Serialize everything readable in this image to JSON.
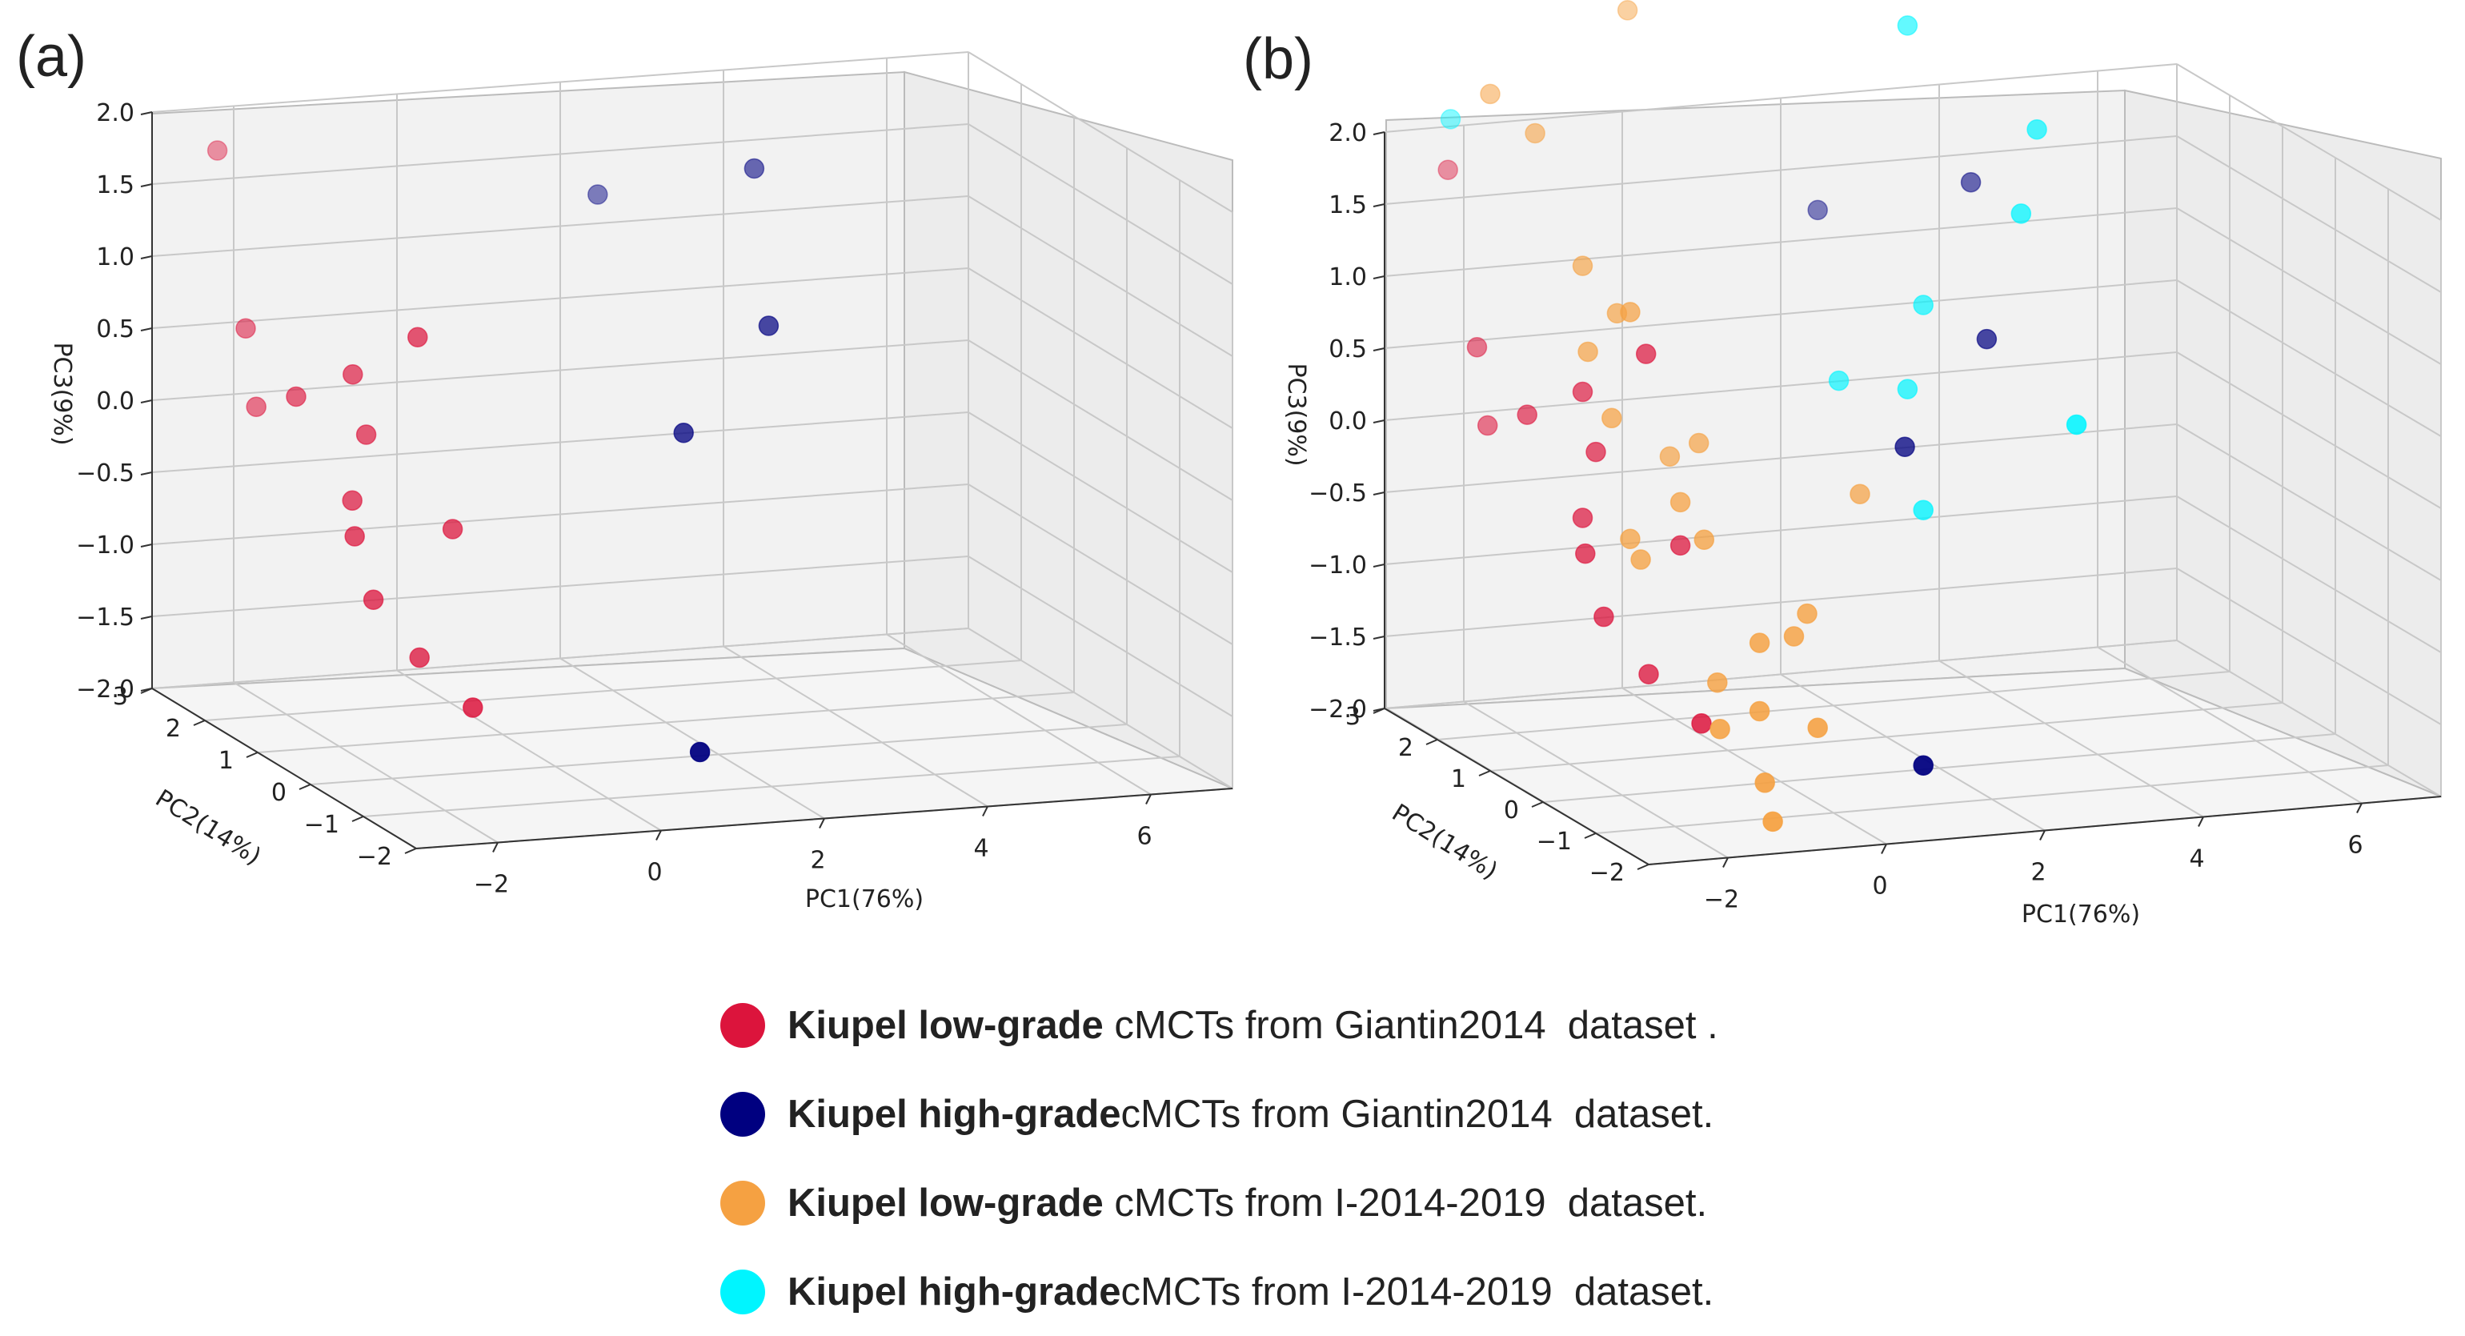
{
  "chart_data": [
    {
      "panel": "(a)",
      "type": "scatter3d",
      "xlabel": "PC1(76%)",
      "ylabel": "PC2(14%)",
      "zlabel": "PC3(9%)",
      "x_ticks": [
        "−2",
        "0",
        "2",
        "4",
        "6"
      ],
      "y_ticks": [
        "−2",
        "−1",
        "0",
        "1",
        "2",
        "3"
      ],
      "z_ticks": [
        "−2.0",
        "−1.5",
        "−1.0",
        "−0.5",
        "0.0",
        "0.5",
        "1.0",
        "1.5",
        "2.0"
      ],
      "xlim": [
        -3,
        7
      ],
      "ylim": [
        -2,
        3
      ],
      "zlim": [
        -2,
        2
      ],
      "series": [
        {
          "name": "Kiupel low-grade cMCTs from Giantin2014 dataset",
          "color": "#dc143c",
          "points": [
            [
              -2.2,
              3.0,
              1.7
            ],
            [
              -2.5,
              2.0,
              0.7
            ],
            [
              -2.5,
              1.8,
              0.2
            ],
            [
              -2.4,
              1.2,
              0.4
            ],
            [
              -1.9,
              0.9,
              0.6
            ],
            [
              -1.8,
              0.8,
              0.2
            ],
            [
              -2.1,
              0.6,
              -0.2
            ],
            [
              -2.2,
              0.4,
              -0.4
            ],
            [
              -2.1,
              0.2,
              -0.8
            ],
            [
              -1.3,
              0.6,
              0.9
            ],
            [
              -1.0,
              0.4,
              -0.4
            ],
            [
              -1.6,
              0.1,
              -1.2
            ],
            [
              -1.4,
              -0.6,
              -1.4
            ]
          ]
        },
        {
          "name": "Kiupel high-grade cMCTs from Giantin2014 dataset",
          "color": "#000080",
          "points": [
            [
              2.2,
              2.6,
              1.3
            ],
            [
              3.6,
              1.8,
              1.6
            ],
            [
              3.0,
              0.6,
              0.8
            ],
            [
              1.7,
              0.2,
              0.2
            ],
            [
              0.8,
              -1.5,
              -1.6
            ]
          ]
        }
      ]
    },
    {
      "panel": "(b)",
      "type": "scatter3d",
      "xlabel": "PC1(76%)",
      "ylabel": "PC2(14%)",
      "zlabel": "PC3(9%)",
      "x_ticks": [
        "−2",
        "0",
        "2",
        "4",
        "6"
      ],
      "y_ticks": [
        "−2",
        "−1",
        "0",
        "1",
        "2",
        "3"
      ],
      "z_ticks": [
        "−2.0",
        "−1.5",
        "−1.0",
        "−0.5",
        "0.0",
        "0.5",
        "1.0",
        "1.5",
        "2.0"
      ],
      "xlim": [
        -3,
        7
      ],
      "ylim": [
        -2,
        3
      ],
      "zlim": [
        -2,
        2
      ],
      "series": [
        {
          "name": "Kiupel low-grade cMCTs from Giantin2014 dataset",
          "color": "#dc143c",
          "points": [
            [
              -2.2,
              3.0,
              1.7
            ],
            [
              -2.5,
              2.0,
              0.7
            ],
            [
              -2.5,
              1.8,
              0.2
            ],
            [
              -2.4,
              1.2,
              0.4
            ],
            [
              -1.9,
              0.9,
              0.6
            ],
            [
              -1.8,
              0.8,
              0.2
            ],
            [
              -2.1,
              0.6,
              -0.2
            ],
            [
              -2.2,
              0.4,
              -0.4
            ],
            [
              -2.1,
              0.2,
              -0.8
            ],
            [
              -1.3,
              0.6,
              0.9
            ],
            [
              -1.0,
              0.4,
              -0.4
            ],
            [
              -1.6,
              0.1,
              -1.2
            ],
            [
              -1.4,
              -0.6,
              -1.4
            ]
          ]
        },
        {
          "name": "Kiupel high-grade cMCTs from Giantin2014 dataset",
          "color": "#000080",
          "points": [
            [
              2.2,
              2.6,
              1.3
            ],
            [
              3.6,
              1.8,
              1.6
            ],
            [
              3.0,
              0.6,
              0.8
            ],
            [
              1.7,
              0.2,
              0.2
            ],
            [
              0.8,
              -1.5,
              -1.6
            ]
          ]
        },
        {
          "name": "Kiupel low-grade cMCTs from I-2014-2019 dataset",
          "color": "#f5a142",
          "points": [
            [
              -2.2,
              2.2,
              2.4
            ],
            [
              -1.9,
              1.8,
              2.2
            ],
            [
              -0.2,
              2.6,
              2.8
            ],
            [
              -1.7,
              1.2,
              1.4
            ],
            [
              -1.4,
              1.0,
              1.1
            ],
            [
              -1.5,
              0.6,
              1.2
            ],
            [
              -1.9,
              0.8,
              0.9
            ],
            [
              -1.8,
              0.5,
              0.5
            ],
            [
              -1.7,
              0.3,
              -0.3
            ],
            [
              -1.7,
              0.1,
              -0.4
            ],
            [
              -0.8,
              0.9,
              0.1
            ],
            [
              -1.0,
              0.4,
              -0.1
            ],
            [
              -0.5,
              0.8,
              0.2
            ],
            [
              -0.9,
              0.1,
              -0.3
            ],
            [
              -0.6,
              -0.5,
              -0.9
            ],
            [
              -1.0,
              -0.3,
              -1.2
            ],
            [
              -1.3,
              -0.8,
              -1.4
            ],
            [
              -0.8,
              -0.8,
              -1.3
            ],
            [
              -0.1,
              -0.4,
              -0.9
            ],
            [
              0.2,
              -0.2,
              -0.8
            ],
            [
              -0.2,
              -1.0,
              -1.4
            ],
            [
              -1.0,
              -1.2,
              -1.7
            ],
            [
              -1.1,
              -1.5,
              -1.9
            ],
            [
              1.4,
              0.6,
              -0.2
            ]
          ]
        },
        {
          "name": "Kiupel high-grade cMCTs from I-2014-2019 dataset",
          "color": "#00f5ff",
          "points": [
            [
              -2.3,
              2.8,
              2.1
            ],
            [
              2.6,
              1.5,
              2.8
            ],
            [
              3.7,
              0.7,
              2.2
            ],
            [
              3.3,
              0.4,
              1.7
            ],
            [
              2.4,
              0.9,
              1.0
            ],
            [
              1.4,
              1.0,
              0.5
            ],
            [
              2.0,
              0.6,
              0.5
            ],
            [
              3.2,
              -0.8,
              0.5
            ],
            [
              1.8,
              0.0,
              -0.2
            ]
          ]
        }
      ]
    }
  ],
  "legend": [
    {
      "color": "#dc143c",
      "bold": "Kiupel low-grade",
      "rest": " cMCTs from Giantin2014  dataset ."
    },
    {
      "color": "#000080",
      "bold": "Kiupel high-grade",
      "rest": "cMCTs from Giantin2014  dataset."
    },
    {
      "color": "#f5a142",
      "bold": "Kiupel low-grade",
      "rest": " cMCTs from I-2014-2019  dataset."
    },
    {
      "color": "#00f5ff",
      "bold": "Kiupel high-grade",
      "rest": "cMCTs from I-2014-2019  dataset."
    }
  ]
}
